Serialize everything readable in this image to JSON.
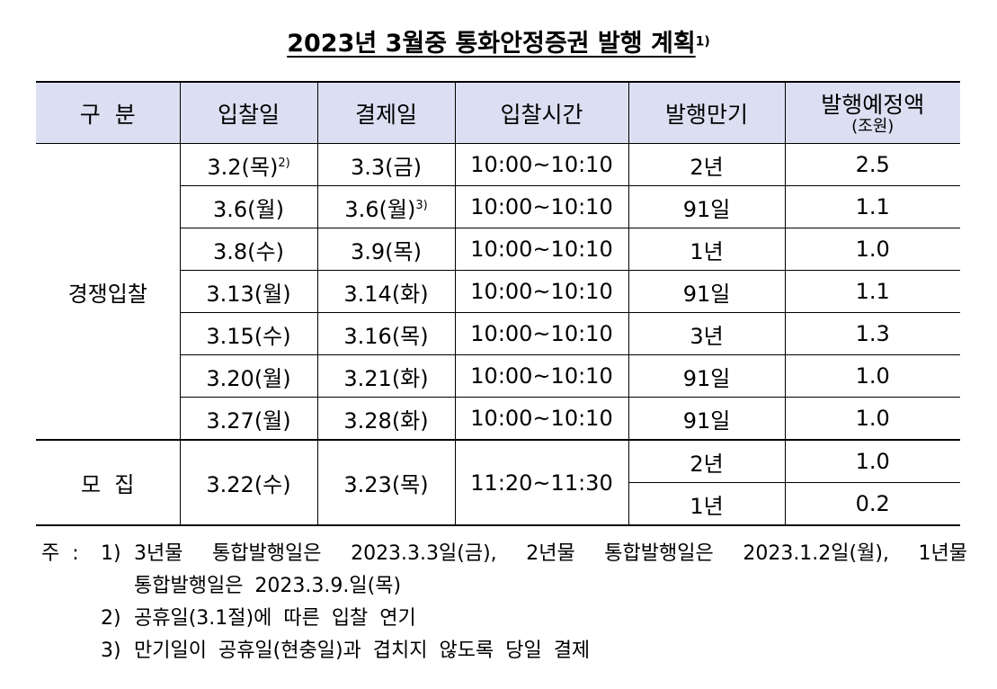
{
  "title": {
    "text": "2023년  3월중  통화안정증권  발행  계획",
    "sup": "1)"
  },
  "headers": {
    "category": "구  분",
    "auction_date": "입찰일",
    "settle_date": "결제일",
    "auction_time": "입찰시간",
    "maturity": "발행만기",
    "amount_main": "발행예정액",
    "amount_unit": "(조원)"
  },
  "groups": {
    "competitive": "경쟁입찰",
    "subscription": "모  집"
  },
  "rows": [
    {
      "auction": "3.2(목)",
      "auction_fn": "2)",
      "settle": "3.3(금)",
      "settle_fn": "",
      "time": "10:00~10:10",
      "term": "2년",
      "amount": "2.5"
    },
    {
      "auction": "3.6(월)",
      "auction_fn": "",
      "settle": "3.6(월)",
      "settle_fn": "3)",
      "time": "10:00~10:10",
      "term": "91일",
      "amount": "1.1"
    },
    {
      "auction": "3.8(수)",
      "auction_fn": "",
      "settle": "3.9(목)",
      "settle_fn": "",
      "time": "10:00~10:10",
      "term": "1년",
      "amount": "1.0"
    },
    {
      "auction": "3.13(월)",
      "auction_fn": "",
      "settle": "3.14(화)",
      "settle_fn": "",
      "time": "10:00~10:10",
      "term": "91일",
      "amount": "1.1"
    },
    {
      "auction": "3.15(수)",
      "auction_fn": "",
      "settle": "3.16(목)",
      "settle_fn": "",
      "time": "10:00~10:10",
      "term": "3년",
      "amount": "1.3"
    },
    {
      "auction": "3.20(월)",
      "auction_fn": "",
      "settle": "3.21(화)",
      "settle_fn": "",
      "time": "10:00~10:10",
      "term": "91일",
      "amount": "1.0"
    },
    {
      "auction": "3.27(월)",
      "auction_fn": "",
      "settle": "3.28(화)",
      "settle_fn": "",
      "time": "10:00~10:10",
      "term": "91일",
      "amount": "1.0"
    }
  ],
  "subscription": {
    "auction": "3.22(수)",
    "settle": "3.23(목)",
    "time": "11:20~11:30",
    "items": [
      {
        "term": "2년",
        "amount": "1.0"
      },
      {
        "term": "1년",
        "amount": "0.2"
      }
    ]
  },
  "notes": {
    "label": "주  :",
    "items": [
      {
        "num": "1)",
        "line1": "3년물 통합발행일은 2023.3.3일(금), 2년물 통합발행일은 2023.1.2일(월), 1년물",
        "line2": "통합발행일은 2023.3.9.일(목)"
      },
      {
        "num": "2)",
        "line1": "공휴일(3.1절)에 따른 입찰 연기"
      },
      {
        "num": "3)",
        "line1": "만기일이 공휴일(현충일)과 겹치지 않도록 당일 결제"
      }
    ]
  }
}
